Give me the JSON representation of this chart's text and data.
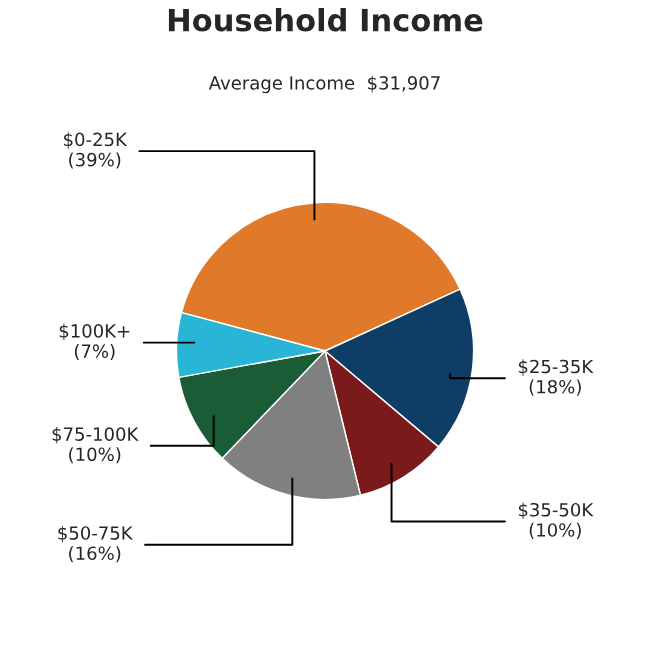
{
  "chart_data": {
    "type": "pie",
    "title": "Household Income",
    "subtitle": "Average Income  $31,907",
    "categories": [
      "$0-25K",
      "$25-35K",
      "$35-50K",
      "$50-75K",
      "$75-100K",
      "$100K+"
    ],
    "values": [
      39,
      18,
      10,
      16,
      10,
      7
    ],
    "value_labels": [
      "(39%)",
      "(18%)",
      "(10%)",
      "(16%)",
      "(10%)",
      "(7%)"
    ],
    "colors": [
      "#e07a2a",
      "#0e3d66",
      "#7a1a1a",
      "#808080",
      "#1a5c35",
      "#29b6d6"
    ],
    "legend": false
  }
}
